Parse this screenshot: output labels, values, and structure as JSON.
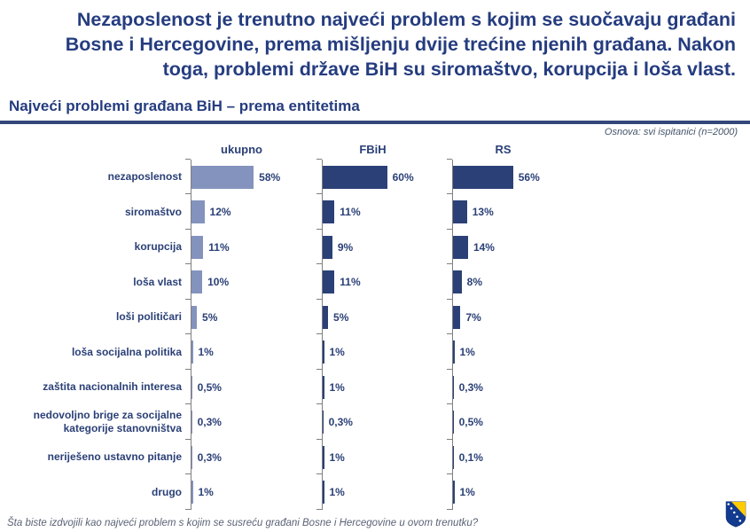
{
  "slide": {
    "title": "Nezaposlenost je trenutno najveći problem s kojim se suočavaju građani\nBosne i Hercegovine, prema mišljenju dvije trećine njenih građana. Nakon\ntoga, problemi države BiH su siromaštvo, korupcija i loša vlast.",
    "subtitle": "Najveći problemi građana BiH – prema entitetima",
    "basis_note": "Osnova: svi ispitanici (n=2000)",
    "footer_question": "Šta biste izdvojili kao najveći problem s kojim se susreću građani Bosne i Hercegovine u ovom trenutku?",
    "flag_icon": "bosnia-herzegovina-shield-flag"
  },
  "colors": {
    "title_navy": "#253c7f",
    "bar_light": "#8493bd",
    "bar_dark": "#2b4077",
    "axis_gray": "#7f7f7f",
    "note_gray": "#44546a",
    "divider_navy": "#33477a",
    "flag_blue": "#123b8f",
    "flag_yellow": "#ffcc00"
  },
  "chart_data": {
    "type": "bar",
    "orientation": "horizontal",
    "title": "Najveći problemi građana BiH – prema entitetima",
    "xlabel": "",
    "ylabel": "",
    "xlim": [
      0,
      100
    ],
    "grid": false,
    "legend_position": "column-headers-top",
    "value_suffix": "%",
    "categories": [
      "nezaposlenost",
      "siromaštvo",
      "korupcija",
      "loša vlast",
      "loši političari",
      "loša socijalna politika",
      "zaštita nacionalnih interesa",
      "nedovoljno brige za socijalne kategorije stanovništva",
      "neriješeno ustavno pitanje",
      "drugo"
    ],
    "series": [
      {
        "name": "ukupno",
        "color": "#8493bd",
        "values": [
          58,
          12,
          11,
          10,
          5,
          1,
          0.5,
          0.3,
          0.3,
          1
        ],
        "labels": [
          "58%",
          "12%",
          "11%",
          "10%",
          "5%",
          "1%",
          "0,5%",
          "0,3%",
          "0,3%",
          "1%"
        ]
      },
      {
        "name": "FBiH",
        "color": "#2b4077",
        "values": [
          60,
          11,
          9,
          11,
          5,
          1,
          1,
          0.3,
          1,
          1
        ],
        "labels": [
          "60%",
          "11%",
          "9%",
          "11%",
          "5%",
          "1%",
          "1%",
          "0,3%",
          "1%",
          "1%"
        ]
      },
      {
        "name": "RS",
        "color": "#2b4077",
        "values": [
          56,
          13,
          14,
          8,
          7,
          1,
          0.3,
          0.5,
          0.1,
          1
        ],
        "labels": [
          "56%",
          "13%",
          "14%",
          "8%",
          "7%",
          "1%",
          "0,3%",
          "0,5%",
          "0,1%",
          "1%"
        ]
      }
    ]
  }
}
